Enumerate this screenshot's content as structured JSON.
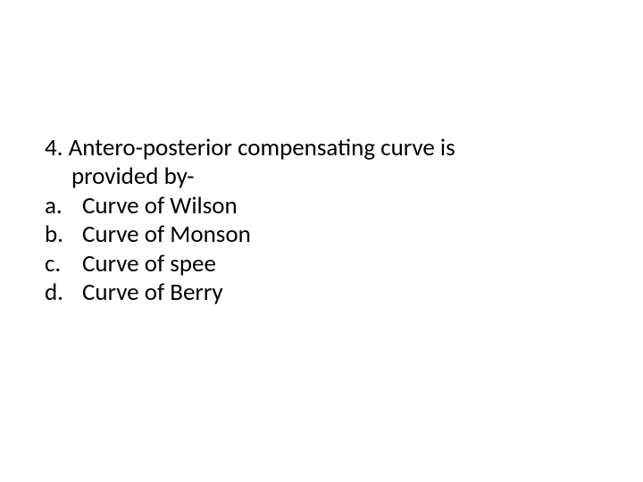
{
  "question": {
    "number": "4.",
    "line1": "4. Antero-posterior compensating curve is",
    "line2": "provided by-"
  },
  "options": [
    {
      "letter": "a.",
      "text": "Curve of Wilson"
    },
    {
      "letter": "b.",
      "text": "Curve of Monson"
    },
    {
      "letter": "c.",
      "text": "Curve of spee"
    },
    {
      "letter": "d.",
      "text": "Curve of Berry"
    }
  ],
  "colors": {
    "background": "#ffffff",
    "text": "#000000"
  },
  "typography": {
    "font_family": "Calibri",
    "font_size_pt": 20,
    "font_weight": "normal"
  }
}
